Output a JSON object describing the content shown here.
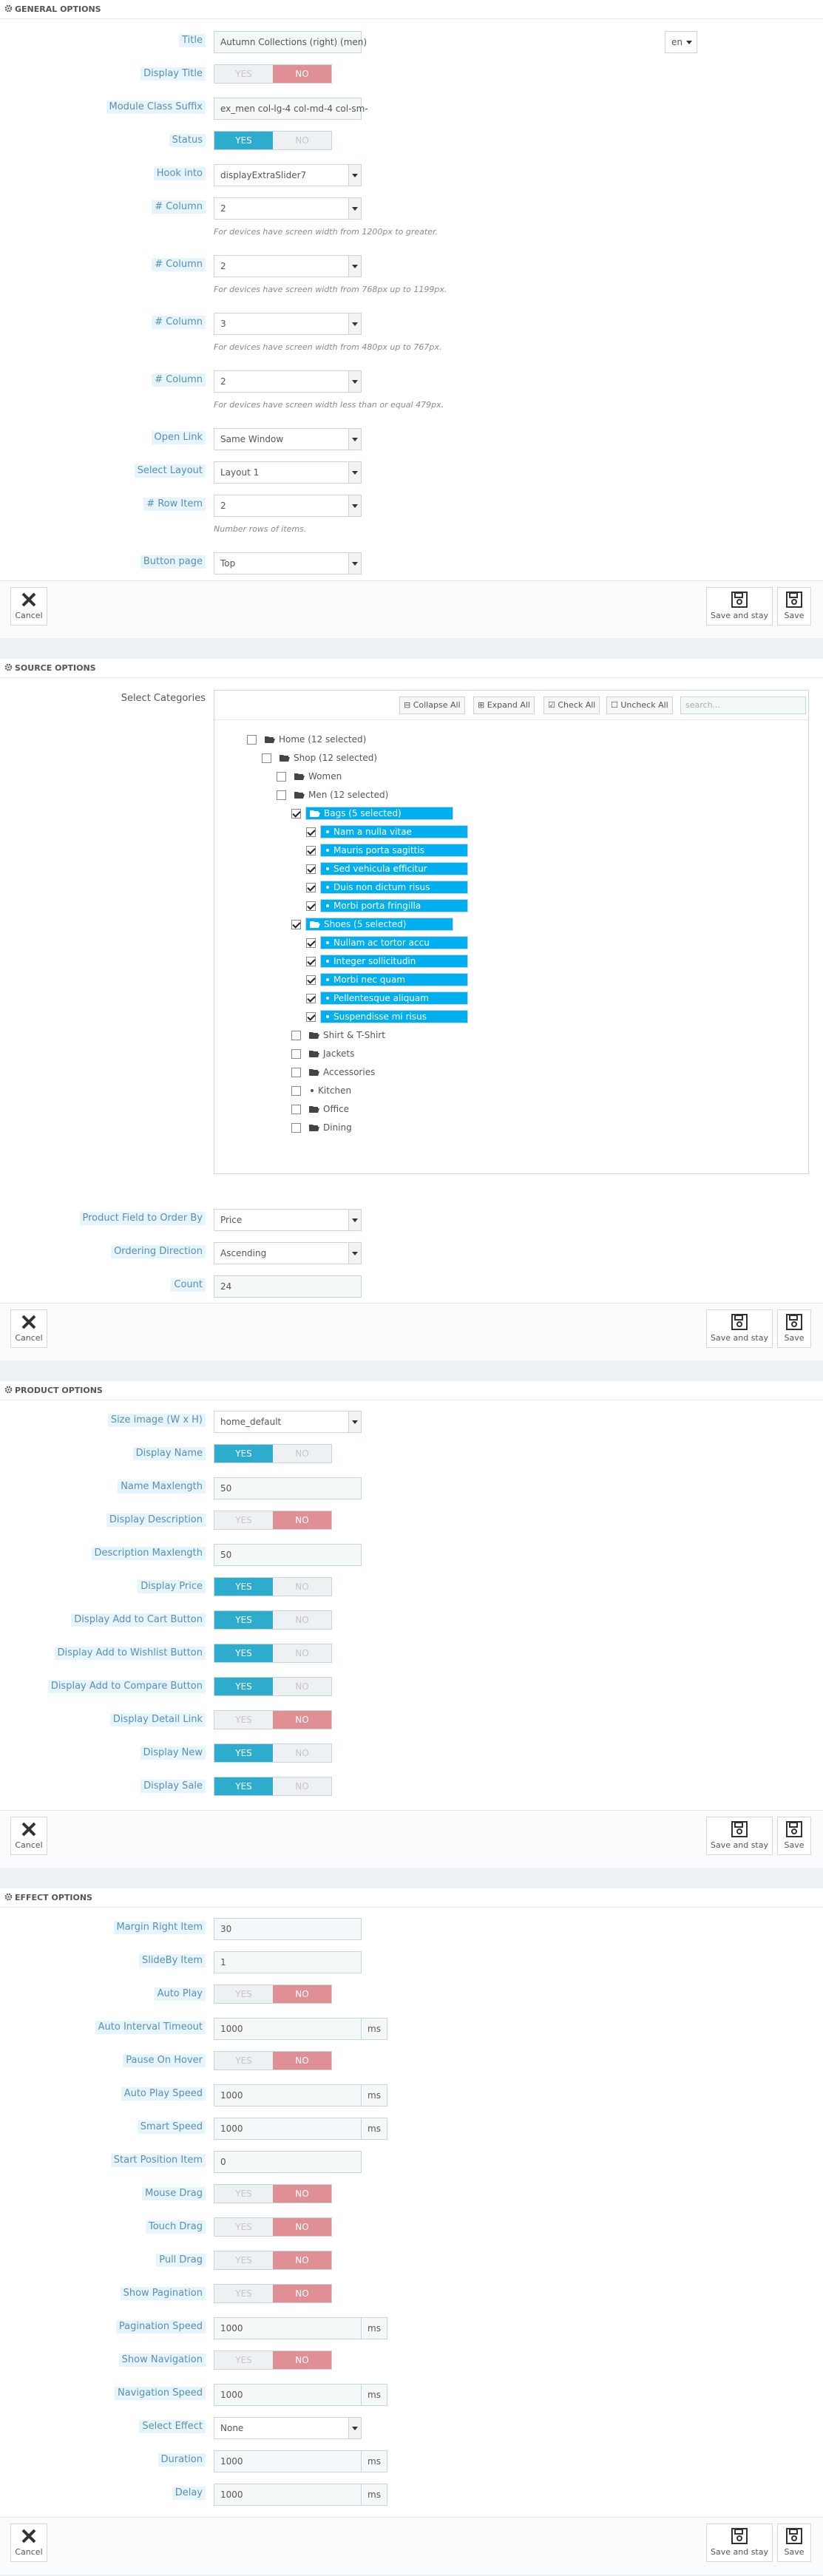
{
  "general": {
    "heading": "GENERAL OPTIONS",
    "title_label": "Title",
    "title_value": "Autumn Collections (right) (men)",
    "lang": "en",
    "display_title_label": "Display Title",
    "display_title": "NO",
    "class_suffix_label": "Module Class Suffix",
    "class_suffix_value": "ex_men col-lg-4 col-md-4 col-sm-",
    "status_label": "Status",
    "status": "YES",
    "hook_label": "Hook into",
    "hook_value": "displayExtraSlider7",
    "col1_label": "# Column",
    "col1_value": "2",
    "col1_help": "For devices have screen width from 1200px to greater.",
    "col2_label": "# Column",
    "col2_value": "2",
    "col2_help": "For devices have screen width from 768px up to 1199px.",
    "col3_label": "# Column",
    "col3_value": "3",
    "col3_help": "For devices have screen width from 480px up to 767px.",
    "col4_label": "# Column",
    "col4_value": "2",
    "col4_help": "For devices have screen width less than or equal 479px.",
    "open_link_label": "Open Link",
    "open_link_value": "Same Window",
    "layout_label": "Select Layout",
    "layout_value": "Layout 1",
    "row_item_label": "# Row Item",
    "row_item_value": "2",
    "row_item_help": "Number rows of items.",
    "button_page_label": "Button page",
    "button_page_value": "Top"
  },
  "switch": {
    "yes": "YES",
    "no": "NO"
  },
  "buttons": {
    "cancel": "Cancel",
    "save_stay": "Save and stay",
    "save": "Save"
  },
  "source": {
    "heading": "SOURCE OPTIONS",
    "categories_label": "Select Categories",
    "collapse_all": "Collapse All",
    "expand_all": "Expand All",
    "check_all": "Check All",
    "uncheck_all": "Uncheck All",
    "search_placeholder": "search...",
    "tree": [
      {
        "label": "Home (12 selected)",
        "checked": false,
        "sel": false,
        "type": "folder"
      },
      {
        "label": "Shop (12 selected)",
        "checked": false,
        "sel": false,
        "type": "folder"
      },
      {
        "label": "Women",
        "checked": false,
        "sel": false,
        "type": "folder"
      },
      {
        "label": "Men (12 selected)",
        "checked": false,
        "sel": false,
        "type": "folder"
      },
      {
        "label": "Bags (5 selected)",
        "checked": true,
        "sel": true,
        "type": "folder"
      },
      {
        "label": "Nam a nulla vitae",
        "checked": true,
        "sel": true,
        "type": "leaf"
      },
      {
        "label": "Mauris porta sagittis",
        "checked": true,
        "sel": true,
        "type": "leaf"
      },
      {
        "label": "Sed vehicula efficitur",
        "checked": true,
        "sel": true,
        "type": "leaf"
      },
      {
        "label": "Duis non dictum risus",
        "checked": true,
        "sel": true,
        "type": "leaf"
      },
      {
        "label": "Morbi porta fringilla",
        "checked": true,
        "sel": true,
        "type": "leaf"
      },
      {
        "label": "Shoes (5 selected)",
        "checked": true,
        "sel": true,
        "type": "folder"
      },
      {
        "label": "Nullam ac tortor accu",
        "checked": true,
        "sel": true,
        "type": "leaf"
      },
      {
        "label": "Integer sollicitudin",
        "checked": true,
        "sel": true,
        "type": "leaf"
      },
      {
        "label": "Morbi nec quam",
        "checked": true,
        "sel": true,
        "type": "leaf"
      },
      {
        "label": "Pellentesque aliquam",
        "checked": true,
        "sel": true,
        "type": "leaf"
      },
      {
        "label": "Suspendisse mi risus",
        "checked": true,
        "sel": true,
        "type": "leaf"
      },
      {
        "label": "Shirt & T-Shirt",
        "checked": false,
        "sel": false,
        "type": "folder"
      },
      {
        "label": "Jackets",
        "checked": false,
        "sel": false,
        "type": "folder"
      },
      {
        "label": "Accessories",
        "checked": false,
        "sel": false,
        "type": "folder"
      },
      {
        "label": "Kitchen",
        "checked": false,
        "sel": false,
        "type": "leaf"
      },
      {
        "label": "Office",
        "checked": false,
        "sel": false,
        "type": "folder"
      },
      {
        "label": "Dining",
        "checked": false,
        "sel": false,
        "type": "folder"
      }
    ],
    "order_by_label": "Product Field to Order By",
    "order_by_value": "Price",
    "direction_label": "Ordering Direction",
    "direction_value": "Ascending",
    "count_label": "Count",
    "count_value": "24"
  },
  "product": {
    "heading": "PRODUCT OPTIONS",
    "size_label": "Size image (W x H)",
    "size_value": "home_default",
    "display_name_label": "Display Name",
    "display_name": "YES",
    "name_max_label": "Name Maxlength",
    "name_max_value": "50",
    "display_desc_label": "Display Description",
    "display_desc": "NO",
    "desc_max_label": "Description Maxlength",
    "desc_max_value": "50",
    "display_price_label": "Display Price",
    "display_price": "YES",
    "add_cart_label": "Display Add to Cart Button",
    "add_cart": "YES",
    "add_wishlist_label": "Display Add to Wishlist Button",
    "add_wishlist": "YES",
    "add_compare_label": "Display Add to Compare Button",
    "add_compare": "YES",
    "detail_link_label": "Display Detail Link",
    "detail_link": "NO",
    "display_new_label": "Display New",
    "display_new": "YES",
    "display_sale_label": "Display Sale",
    "display_sale": "YES"
  },
  "effect": {
    "heading": "EFFECT OPTIONS",
    "unit": "ms",
    "rows": [
      {
        "label": "Margin Right Item",
        "kind": "input",
        "value": "30"
      },
      {
        "label": "SlideBy Item",
        "kind": "input",
        "value": "1"
      },
      {
        "label": "Auto Play",
        "kind": "switch",
        "value": "NO"
      },
      {
        "label": "Auto Interval Timeout",
        "kind": "ms",
        "value": "1000"
      },
      {
        "label": "Pause On Hover",
        "kind": "switch",
        "value": "NO"
      },
      {
        "label": "Auto Play Speed",
        "kind": "ms",
        "value": "1000"
      },
      {
        "label": "Smart Speed",
        "kind": "ms",
        "value": "1000"
      },
      {
        "label": "Start Position Item",
        "kind": "input",
        "value": "0"
      },
      {
        "label": "Mouse Drag",
        "kind": "switch",
        "value": "NO"
      },
      {
        "label": "Touch Drag",
        "kind": "switch",
        "value": "NO"
      },
      {
        "label": "Pull Drag",
        "kind": "switch",
        "value": "NO"
      },
      {
        "label": "Show Pagination",
        "kind": "switch",
        "value": "NO"
      },
      {
        "label": "Pagination Speed",
        "kind": "ms",
        "value": "1000"
      },
      {
        "label": "Show Navigation",
        "kind": "switch",
        "value": "NO"
      },
      {
        "label": "Navigation Speed",
        "kind": "ms",
        "value": "1000"
      },
      {
        "label": "Select Effect",
        "kind": "select",
        "value": "None"
      },
      {
        "label": "Duration",
        "kind": "ms",
        "value": "1000"
      },
      {
        "label": "Delay",
        "kind": "ms",
        "value": "1000"
      }
    ]
  }
}
